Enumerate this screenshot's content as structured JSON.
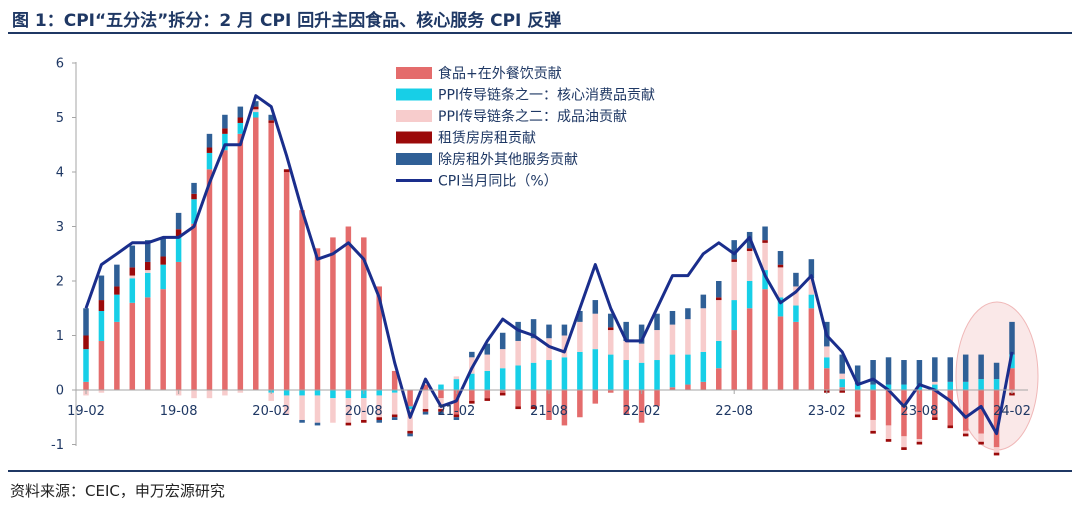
{
  "title": "图 1：CPI“五分法”拆分：2 月 CPI 回升主因食品、核心服务 CPI 反弹",
  "source": "资料来源：CEIC，申万宏源研究",
  "chart_data": {
    "type": "bar",
    "stacked": true,
    "xlabel": "",
    "ylabel": "",
    "ylim": [
      -1,
      6
    ],
    "yticks": [
      -1,
      0,
      1,
      2,
      3,
      4,
      5,
      6
    ],
    "x_tick_labels": [
      "19-02",
      "19-08",
      "20-02",
      "20-08",
      "21-02",
      "21-08",
      "22-02",
      "22-08",
      "23-02",
      "23-08",
      "24-02"
    ],
    "categories": [
      "19-02",
      "19-03",
      "19-04",
      "19-05",
      "19-06",
      "19-07",
      "19-08",
      "19-09",
      "19-10",
      "19-11",
      "19-12",
      "20-01",
      "20-02",
      "20-03",
      "20-04",
      "20-05",
      "20-06",
      "20-07",
      "20-08",
      "20-09",
      "20-10",
      "20-11",
      "20-12",
      "21-01",
      "21-02",
      "21-03",
      "21-04",
      "21-05",
      "21-06",
      "21-07",
      "21-08",
      "21-09",
      "21-10",
      "21-11",
      "21-12",
      "22-01",
      "22-02",
      "22-03",
      "22-04",
      "22-05",
      "22-06",
      "22-07",
      "22-08",
      "22-09",
      "22-10",
      "22-11",
      "22-12",
      "23-01",
      "23-02",
      "23-03",
      "23-04",
      "23-05",
      "23-06",
      "23-07",
      "23-08",
      "23-09",
      "23-10",
      "23-11",
      "23-12",
      "24-01",
      "24-02"
    ],
    "series": [
      {
        "name": "食品+在外餐饮贡献",
        "color": "#e46c6c",
        "values": [
          0.15,
          0.9,
          1.25,
          1.6,
          1.7,
          1.85,
          2.35,
          3.05,
          4.05,
          4.4,
          4.7,
          5.0,
          4.9,
          4.0,
          3.3,
          2.6,
          2.8,
          3.0,
          2.8,
          1.9,
          0.35,
          -0.3,
          0.1,
          -0.15,
          -0.45,
          -0.2,
          -0.15,
          -0.05,
          -0.3,
          -0.3,
          -0.55,
          -0.65,
          -0.5,
          -0.25,
          -0.05,
          -0.45,
          -0.6,
          -0.3,
          0.05,
          0.1,
          0.15,
          0.4,
          1.1,
          1.5,
          1.85,
          1.35,
          1.25,
          1.5,
          0.4,
          0.05,
          -0.4,
          -0.55,
          -0.65,
          -0.85,
          -0.9,
          -0.5,
          -0.65,
          -0.75,
          -0.8,
          -1.05,
          0.4
        ]
      },
      {
        "name": "PPI传导链条之一：核心消费品贡献",
        "color": "#17cfe7",
        "values": [
          0.6,
          0.55,
          0.5,
          0.45,
          0.45,
          0.45,
          0.45,
          0.45,
          0.3,
          0.3,
          0.2,
          0.1,
          -0.05,
          -0.1,
          -0.1,
          -0.1,
          -0.15,
          -0.15,
          -0.15,
          -0.1,
          -0.05,
          -0.05,
          0.0,
          0.1,
          0.2,
          0.3,
          0.35,
          0.4,
          0.45,
          0.5,
          0.55,
          0.6,
          0.7,
          0.75,
          0.65,
          0.55,
          0.5,
          0.55,
          0.6,
          0.55,
          0.55,
          0.5,
          0.55,
          0.5,
          0.35,
          0.35,
          0.3,
          0.25,
          0.2,
          0.15,
          0.1,
          0.1,
          0.1,
          0.1,
          0.1,
          0.1,
          0.15,
          0.15,
          0.2,
          0.2,
          0.25
        ]
      },
      {
        "name": "PPI传导链条之二：成品油贡献",
        "color": "#f7cccc",
        "values": [
          -0.1,
          -0.05,
          0.0,
          0.05,
          0.05,
          0.0,
          -0.1,
          -0.15,
          -0.15,
          -0.1,
          -0.05,
          0.05,
          -0.15,
          -0.35,
          -0.45,
          -0.5,
          -0.45,
          -0.45,
          -0.4,
          -0.4,
          -0.4,
          -0.4,
          -0.35,
          -0.2,
          0.05,
          0.3,
          0.3,
          0.35,
          0.45,
          0.45,
          0.4,
          0.4,
          0.55,
          0.65,
          0.45,
          0.35,
          0.35,
          0.55,
          0.55,
          0.65,
          0.8,
          0.75,
          0.7,
          0.55,
          0.5,
          0.55,
          0.35,
          0.3,
          0.2,
          0.1,
          -0.05,
          -0.2,
          -0.25,
          -0.2,
          -0.05,
          0.05,
          0.0,
          -0.05,
          -0.15,
          -0.1,
          -0.05
        ]
      },
      {
        "name": "租赁房房租贡献",
        "color": "#9b0a0a",
        "values": [
          0.25,
          0.2,
          0.15,
          0.15,
          0.15,
          0.15,
          0.15,
          0.1,
          0.1,
          0.1,
          0.1,
          0.05,
          0.05,
          0.05,
          0.0,
          0.0,
          0.0,
          -0.05,
          -0.05,
          -0.05,
          -0.05,
          -0.05,
          -0.05,
          -0.05,
          -0.05,
          -0.05,
          -0.05,
          -0.05,
          -0.05,
          -0.05,
          0.0,
          0.0,
          0.0,
          0.0,
          0.05,
          0.0,
          0.0,
          0.0,
          0.0,
          0.0,
          0.0,
          0.05,
          0.05,
          0.05,
          0.05,
          0.05,
          0.0,
          0.0,
          -0.05,
          -0.05,
          -0.05,
          -0.05,
          -0.05,
          -0.05,
          -0.05,
          -0.05,
          -0.05,
          -0.05,
          -0.05,
          -0.05,
          -0.05
        ]
      },
      {
        "name": "除房租外其他服务贡献",
        "color": "#2f5f96",
        "values": [
          0.5,
          0.45,
          0.4,
          0.4,
          0.4,
          0.35,
          0.3,
          0.2,
          0.25,
          0.25,
          0.2,
          0.1,
          0.1,
          0.0,
          -0.05,
          -0.05,
          0.0,
          0.0,
          0.0,
          -0.05,
          -0.05,
          -0.05,
          -0.05,
          -0.05,
          -0.05,
          0.1,
          0.2,
          0.3,
          0.35,
          0.35,
          0.25,
          0.2,
          0.2,
          0.25,
          0.25,
          0.35,
          0.35,
          0.3,
          0.25,
          0.2,
          0.25,
          0.3,
          0.35,
          0.3,
          0.25,
          0.25,
          0.25,
          0.35,
          0.45,
          0.35,
          0.35,
          0.45,
          0.5,
          0.45,
          0.45,
          0.45,
          0.45,
          0.5,
          0.45,
          0.3,
          0.6
        ]
      }
    ],
    "line": {
      "name": "CPI当月同比（%）",
      "color": "#1a2e8c",
      "values": [
        1.5,
        2.3,
        2.5,
        2.7,
        2.7,
        2.8,
        2.8,
        3.0,
        3.8,
        4.5,
        4.5,
        5.4,
        5.2,
        4.3,
        3.3,
        2.4,
        2.5,
        2.7,
        2.4,
        1.7,
        0.5,
        -0.5,
        0.2,
        -0.3,
        -0.2,
        0.4,
        0.9,
        1.3,
        1.1,
        1.0,
        0.8,
        0.7,
        1.5,
        2.3,
        1.5,
        0.9,
        0.9,
        1.5,
        2.1,
        2.1,
        2.5,
        2.7,
        2.5,
        2.8,
        2.1,
        1.6,
        1.8,
        2.1,
        1.0,
        0.7,
        0.1,
        0.2,
        0.0,
        -0.3,
        0.1,
        0.0,
        -0.2,
        -0.5,
        -0.3,
        -0.8,
        0.7
      ]
    }
  }
}
